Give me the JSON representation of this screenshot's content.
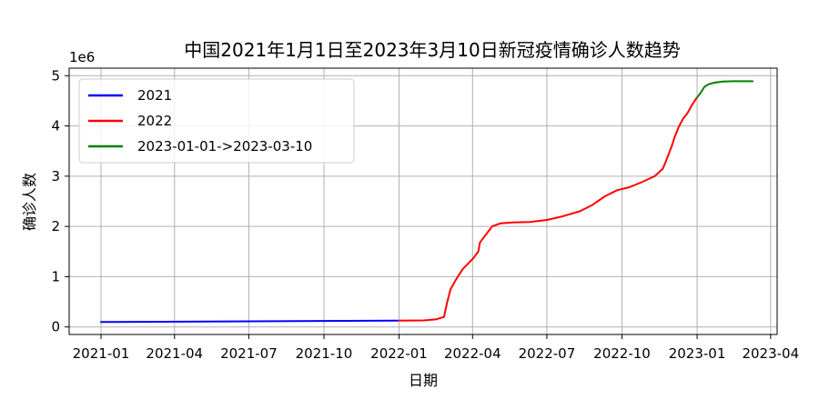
{
  "chart_data": {
    "type": "line",
    "title": "中国2021年1月1日至2023年3月10日新冠疫情确诊人数趋势",
    "xlabel": "日期",
    "ylabel": "确诊人数",
    "y_scale_label": "1e6",
    "xlim": [
      "2020-11-23",
      "2023-04-09"
    ],
    "ylim": [
      -0.15,
      5.15
    ],
    "grid": true,
    "legend_position": "top-left",
    "x_ticks": [
      {
        "date": "2021-01-01",
        "label": "2021-01"
      },
      {
        "date": "2021-04-01",
        "label": "2021-04"
      },
      {
        "date": "2021-07-01",
        "label": "2021-07"
      },
      {
        "date": "2021-10-01",
        "label": "2021-10"
      },
      {
        "date": "2022-01-01",
        "label": "2022-01"
      },
      {
        "date": "2022-04-01",
        "label": "2022-04"
      },
      {
        "date": "2022-07-01",
        "label": "2022-07"
      },
      {
        "date": "2022-10-01",
        "label": "2022-10"
      },
      {
        "date": "2023-01-01",
        "label": "2023-01"
      },
      {
        "date": "2023-04-01",
        "label": "2023-04"
      }
    ],
    "y_ticks": [
      {
        "value": 0,
        "label": "0"
      },
      {
        "value": 1,
        "label": "1"
      },
      {
        "value": 2,
        "label": "2"
      },
      {
        "value": 3,
        "label": "3"
      },
      {
        "value": 4,
        "label": "4"
      },
      {
        "value": 5,
        "label": "5"
      }
    ],
    "series": [
      {
        "name": "2021",
        "color": "#0000ff",
        "points": [
          [
            "2021-01-01",
            0.097
          ],
          [
            "2021-12-31",
            0.125
          ]
        ]
      },
      {
        "name": "2022",
        "color": "#ff0000",
        "points": [
          [
            "2022-01-01",
            0.125
          ],
          [
            "2022-02-01",
            0.13
          ],
          [
            "2022-02-15",
            0.15
          ],
          [
            "2022-02-25",
            0.2
          ],
          [
            "2022-03-01",
            0.5
          ],
          [
            "2022-03-05",
            0.75
          ],
          [
            "2022-03-12",
            0.95
          ],
          [
            "2022-03-20",
            1.15
          ],
          [
            "2022-04-01",
            1.35
          ],
          [
            "2022-04-08",
            1.5
          ],
          [
            "2022-04-10",
            1.68
          ],
          [
            "2022-04-18",
            1.85
          ],
          [
            "2022-04-25",
            2.0
          ],
          [
            "2022-05-05",
            2.06
          ],
          [
            "2022-05-20",
            2.08
          ],
          [
            "2022-06-10",
            2.09
          ],
          [
            "2022-07-01",
            2.13
          ],
          [
            "2022-07-20",
            2.2
          ],
          [
            "2022-08-10",
            2.3
          ],
          [
            "2022-08-25",
            2.42
          ],
          [
            "2022-09-10",
            2.6
          ],
          [
            "2022-09-25",
            2.72
          ],
          [
            "2022-10-10",
            2.78
          ],
          [
            "2022-10-25",
            2.88
          ],
          [
            "2022-11-10",
            3.0
          ],
          [
            "2022-11-20",
            3.15
          ],
          [
            "2022-11-25",
            3.35
          ],
          [
            "2022-12-01",
            3.6
          ],
          [
            "2022-12-05",
            3.8
          ],
          [
            "2022-12-10",
            4.0
          ],
          [
            "2022-12-15",
            4.15
          ],
          [
            "2022-12-20",
            4.25
          ],
          [
            "2022-12-25",
            4.4
          ],
          [
            "2022-12-31",
            4.55
          ]
        ]
      },
      {
        "name": "2023-01-01->2023-03-10",
        "color": "#008000",
        "points": [
          [
            "2023-01-01",
            4.57
          ],
          [
            "2023-01-05",
            4.65
          ],
          [
            "2023-01-10",
            4.78
          ],
          [
            "2023-01-15",
            4.83
          ],
          [
            "2023-01-22",
            4.86
          ],
          [
            "2023-02-01",
            4.885
          ],
          [
            "2023-02-15",
            4.89
          ],
          [
            "2023-03-10",
            4.89
          ]
        ]
      }
    ]
  }
}
